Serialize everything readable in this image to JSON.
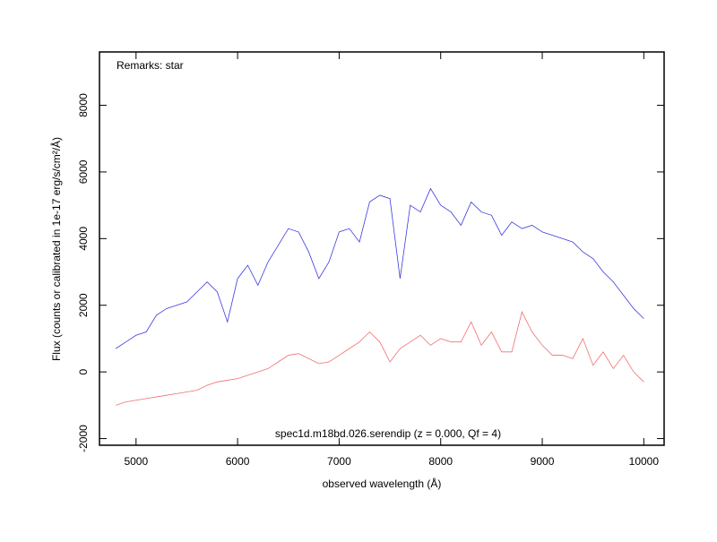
{
  "chart_data": {
    "type": "line",
    "annotations": [
      "Remarks: star",
      "spec1d.m18bd.026.serendip (z = 0.000, Qf = 4)"
    ],
    "x_label": "observed wavelength (Å)",
    "y_label": "Flux (counts or calibrated in 1e-17 erg/s/cm²/Å)",
    "x": [
      4800,
      4900,
      5000,
      5100,
      5200,
      5300,
      5400,
      5500,
      5600,
      5700,
      5800,
      5900,
      6000,
      6100,
      6200,
      6300,
      6400,
      6500,
      6600,
      6700,
      6800,
      6900,
      7000,
      7100,
      7200,
      7300,
      7400,
      7500,
      7600,
      7700,
      7800,
      7900,
      8000,
      8100,
      8200,
      8300,
      8400,
      8500,
      8600,
      8700,
      8800,
      8900,
      9000,
      9100,
      9200,
      9300,
      9400,
      9500,
      9600,
      9700,
      9800,
      9900,
      10000
    ],
    "series": [
      {
        "color": "#3a3ae0",
        "values": [
          700,
          900,
          1100,
          1200,
          1700,
          1900,
          2000,
          2100,
          2400,
          2700,
          2400,
          1500,
          2800,
          3200,
          2600,
          3300,
          3800,
          4300,
          4200,
          3600,
          2800,
          3300,
          4200,
          4300,
          3900,
          5100,
          5300,
          5200,
          2800,
          5000,
          4800,
          5500,
          5000,
          4800,
          4400,
          5100,
          4800,
          4700,
          4100,
          4500,
          4300,
          4400,
          4200,
          4100,
          4000,
          3900,
          3600,
          3400,
          3000,
          2700,
          2300,
          1900,
          1600
        ]
      },
      {
        "color": "#f07070",
        "values": [
          -1000,
          -900,
          -850,
          -800,
          -750,
          -700,
          -650,
          -600,
          -550,
          -400,
          -300,
          -250,
          -200,
          -100,
          0,
          100,
          300,
          500,
          550,
          400,
          250,
          300,
          500,
          700,
          900,
          1200,
          900,
          300,
          700,
          900,
          1100,
          800,
          1000,
          900,
          900,
          1500,
          800,
          1200,
          600,
          600,
          1800,
          1200,
          800,
          500,
          500,
          400,
          1000,
          200,
          600,
          100,
          500,
          0,
          -300
        ]
      }
    ],
    "xlim": [
      4640,
      10200
    ],
    "xticks": [
      5000,
      6000,
      7000,
      8000,
      9000,
      10000
    ],
    "ylim": [
      -2200,
      9600
    ],
    "yticks": [
      -2000,
      0,
      2000,
      4000,
      6000,
      8000
    ]
  }
}
